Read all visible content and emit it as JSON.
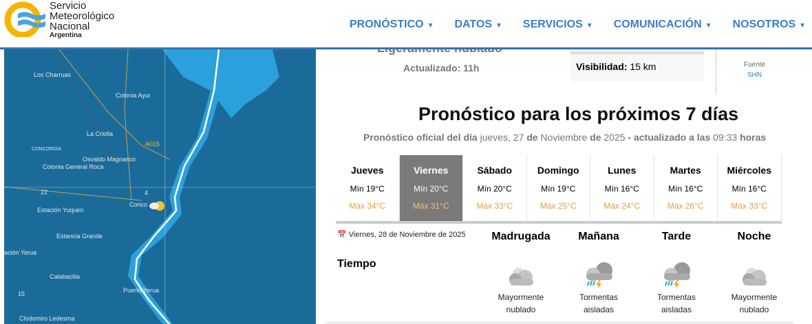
{
  "header": {
    "logo_lines": [
      "Servicio",
      "Meteorológico",
      "Nacional"
    ],
    "logo_country": "Argentina",
    "nav": [
      "PRONÓSTICO",
      "DATOS",
      "SERVICIOS",
      "COMUNICACIÓN",
      "NOSOTROS"
    ]
  },
  "map": {
    "labels": [
      "Los Charruas",
      "Colonia Ayui",
      "La Criolla",
      "A015",
      "CONCORDIA",
      "Osvaldo Magnasco",
      "Colonia General Roca",
      "22",
      "Estación Yuqueri",
      "4",
      "Conco",
      "Estancia Grande",
      "ación Yerua",
      "Calabacilla",
      "15",
      "Puerto Yerua",
      "Clodomiro Ledesma"
    ]
  },
  "current": {
    "condition": "Ligeramente nublado",
    "updated": "Actualizado: 11h",
    "visibility_label": "Visibilidad:",
    "visibility_value": "15 km",
    "source_label": "Fuente",
    "source_value": "SHN"
  },
  "forecast": {
    "title": "Pronóstico para los próximos 7 días",
    "subtitle": {
      "a": "Pronóstico oficial del día",
      "b": "jueves, 27",
      "c": "de",
      "d": "Noviembre",
      "e": "de",
      "f": "2025",
      "g": "- actualizado a las",
      "h": "09:33",
      "i": "horas"
    },
    "selected_day": "Viernes",
    "days": [
      {
        "name": "Jueves",
        "min": "Mín 19°C",
        "max": "Máx 34°C"
      },
      {
        "name": "Viernes",
        "min": "Mín 20°C",
        "max": "Máx 31°C"
      },
      {
        "name": "Sábado",
        "min": "Mín 20°C",
        "max": "Máx 33°C"
      },
      {
        "name": "Domingo",
        "min": "Mín 19°C",
        "max": "Máx 25°C"
      },
      {
        "name": "Lunes",
        "min": "Mín 16°C",
        "max": "Máx 24°C"
      },
      {
        "name": "Martes",
        "min": "Mín 16°C",
        "max": "Máx 26°C"
      },
      {
        "name": "Miércoles",
        "min": "Mín 16°C",
        "max": "Máx 33°C"
      }
    ]
  },
  "detail": {
    "date": "Viernes, 28 de Noviembre de 2025",
    "row_label": "Tiempo",
    "periods": [
      {
        "name": "Madrugada",
        "icon": "cloudy-night-icon",
        "desc1": "Mayormente",
        "desc2": "nublado"
      },
      {
        "name": "Mañana",
        "icon": "thunderstorm-icon",
        "desc1": "Tormentas",
        "desc2": "aisladas"
      },
      {
        "name": "Tarde",
        "icon": "thunderstorm-icon",
        "desc1": "Tormentas",
        "desc2": "aisladas"
      },
      {
        "name": "Noche",
        "icon": "cloudy-night-icon",
        "desc1": "Mayormente",
        "desc2": "nublado"
      }
    ]
  },
  "colors": {
    "brand_blue": "#2f76b6",
    "max_temp": "#e2a13a",
    "selected_day": "#7a7a7a"
  }
}
